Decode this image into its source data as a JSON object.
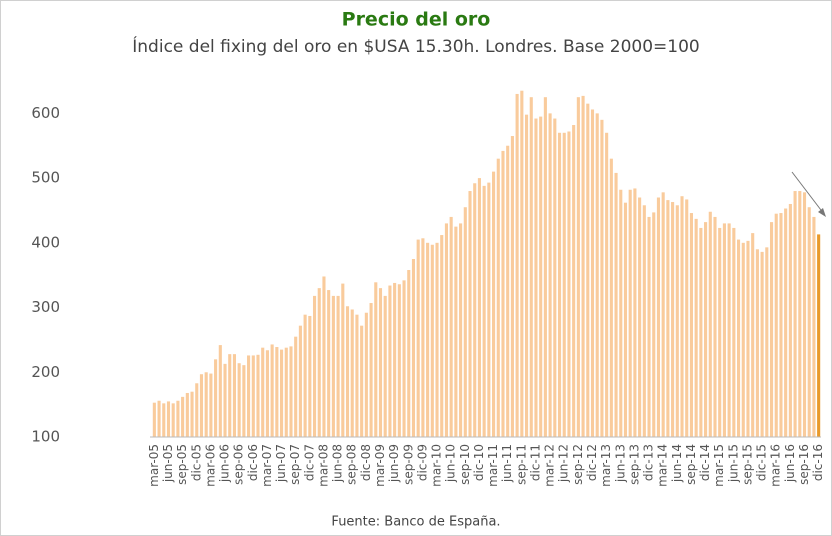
{
  "chart_data": {
    "type": "bar",
    "title": "Precio del oro",
    "subtitle": "Índice del fixing del oro en $USA 15.30h. Londres. Base 2000=100",
    "source": "Fuente: Banco de España.",
    "categories": [
      "mar-05",
      null,
      null,
      "jun-05",
      null,
      null,
      "sep-05",
      null,
      null,
      "dic-05",
      null,
      null,
      "mar-06",
      null,
      null,
      "jun-06",
      null,
      null,
      "sep-06",
      null,
      null,
      "dic-06",
      null,
      null,
      "mar-07",
      null,
      null,
      "jun-07",
      null,
      null,
      "sep-07",
      null,
      null,
      "dic-07",
      null,
      null,
      "mar-08",
      null,
      null,
      "jun-08",
      null,
      null,
      "sep-08",
      null,
      null,
      "dic-08",
      null,
      null,
      "mar-09",
      null,
      null,
      "jun-09",
      null,
      null,
      "sep-09",
      null,
      null,
      "dic-09",
      null,
      null,
      "mar-10",
      null,
      null,
      "jun-10",
      null,
      null,
      "sep-10",
      null,
      null,
      "dic-10",
      null,
      null,
      "mar-11",
      null,
      null,
      "jun-11",
      null,
      null,
      "sep-11",
      null,
      null,
      "dic-11",
      null,
      null,
      "mar-12",
      null,
      null,
      "jun-12",
      null,
      null,
      "sep-12",
      null,
      null,
      "dic-12",
      null,
      null,
      "mar-13",
      null,
      null,
      "jun-13",
      null,
      null,
      "sep-13",
      null,
      null,
      "dic-13",
      null,
      null,
      "mar-14",
      null,
      null,
      "jun-14",
      null,
      null,
      "sep-14",
      null,
      null,
      "dic-14",
      null,
      null,
      "mar-15",
      null,
      null,
      "jun-15",
      null,
      null,
      "sep-15",
      null,
      null,
      "dic-15",
      null,
      null,
      "mar-16",
      null,
      null,
      "jun-16",
      null,
      null,
      "sep-16",
      null,
      null,
      "dic-16"
    ],
    "values": [
      153,
      156,
      152,
      155,
      152,
      156,
      162,
      168,
      170,
      183,
      197,
      200,
      198,
      220,
      242,
      213,
      228,
      228,
      214,
      211,
      226,
      226,
      227,
      238,
      234,
      243,
      239,
      235,
      238,
      240,
      255,
      272,
      289,
      287,
      318,
      330,
      348,
      327,
      318,
      318,
      337,
      302,
      297,
      289,
      272,
      292,
      307,
      339,
      330,
      318,
      334,
      338,
      336,
      342,
      358,
      375,
      405,
      407,
      400,
      397,
      400,
      412,
      430,
      440,
      425,
      430,
      455,
      480,
      492,
      500,
      488,
      493,
      510,
      530,
      542,
      550,
      565,
      630,
      635,
      598,
      625,
      592,
      595,
      625,
      600,
      592,
      570,
      570,
      572,
      582,
      625,
      627,
      615,
      606,
      600,
      590,
      570,
      530,
      508,
      482,
      462,
      482,
      484,
      470,
      458,
      440,
      447,
      470,
      478,
      466,
      463,
      458,
      472,
      467,
      446,
      437,
      423,
      432,
      448,
      440,
      423,
      430,
      430,
      423,
      405,
      400,
      403,
      415,
      390,
      386,
      393,
      432,
      445,
      446,
      453,
      460,
      480,
      480,
      478,
      455,
      440,
      413
    ],
    "color": "#f9cb9c",
    "last_color": "#e89a2c",
    "ylim": [
      100,
      650
    ],
    "yticks": [
      100,
      200,
      300,
      400,
      500,
      600
    ],
    "grid": false
  }
}
